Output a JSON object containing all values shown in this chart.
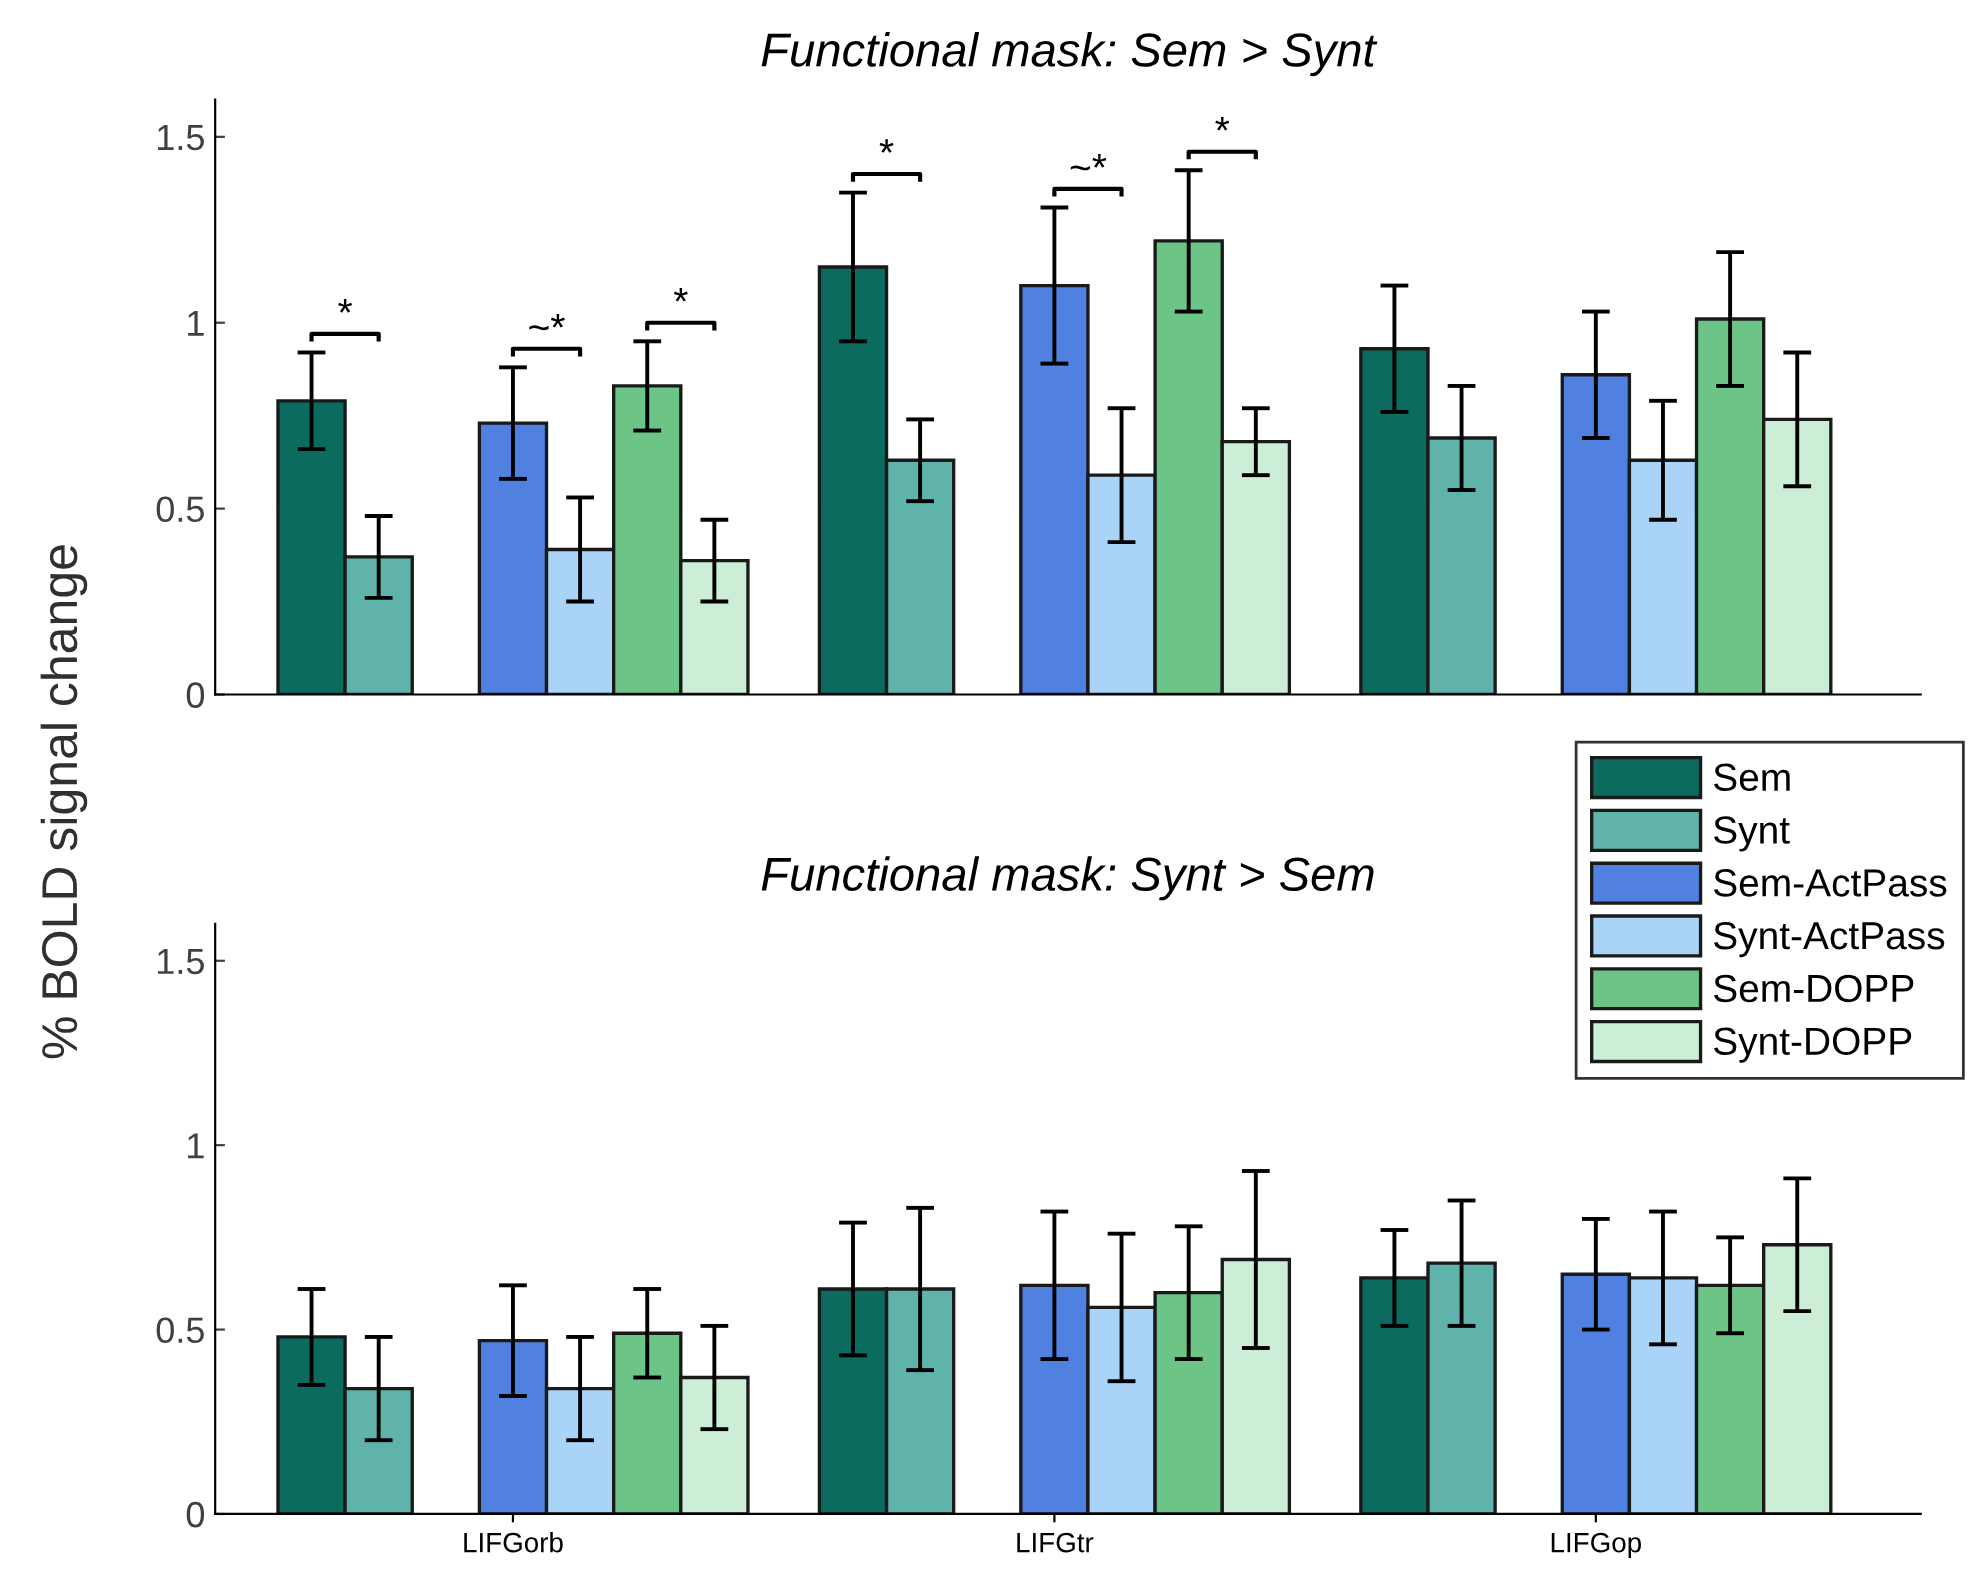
{
  "chart_data": [
    {
      "type": "bar",
      "title": "Functional mask: Sem > Synt",
      "ylabel": "% BOLD signal change",
      "categories": [
        null,
        null,
        null
      ],
      "series": [
        {
          "name": "Sem",
          "color": "#0b6b5e",
          "values": [
            0.79,
            1.15,
            0.93
          ],
          "errors": [
            0.13,
            0.2,
            0.17
          ]
        },
        {
          "name": "Synt",
          "color": "#5fb3aa",
          "values": [
            0.37,
            0.63,
            0.69
          ],
          "errors": [
            0.11,
            0.11,
            0.14
          ]
        },
        {
          "name": "Sem-ActPass",
          "color": "#5080e0",
          "values": [
            0.73,
            1.1,
            0.86
          ],
          "errors": [
            0.15,
            0.21,
            0.17
          ]
        },
        {
          "name": "Synt-ActPass",
          "color": "#a9d3f7",
          "values": [
            0.39,
            0.59,
            0.63
          ],
          "errors": [
            0.14,
            0.18,
            0.16
          ]
        },
        {
          "name": "Sem-DOPP",
          "color": "#6cc487",
          "values": [
            0.83,
            1.22,
            1.01
          ],
          "errors": [
            0.12,
            0.19,
            0.18
          ]
        },
        {
          "name": "Synt-DOPP",
          "color": "#cdeed6",
          "values": [
            0.36,
            0.68,
            0.74
          ],
          "errors": [
            0.11,
            0.09,
            0.18
          ]
        }
      ],
      "annotations": [
        "*",
        "~*",
        "*",
        "*",
        "~*",
        "*"
      ],
      "ylim": [
        0,
        1.6
      ],
      "yticks": [
        0,
        0.5,
        1,
        1.5
      ],
      "tick_labels": "y",
      "grid": false,
      "legend": "bottom right"
    },
    {
      "type": "bar",
      "title": "Functional mask: Synt > Sem",
      "categories": [
        "LIFGorb",
        "LIFGtr",
        "LIFGop"
      ],
      "series": [
        {
          "color": "#0b6b5e",
          "values": [
            0.48,
            0.61,
            0.64
          ],
          "errors": [
            0.13,
            0.18,
            0.13
          ]
        },
        {
          "color": "#5fb3aa",
          "values": [
            0.34,
            0.61,
            0.68
          ],
          "errors": [
            0.14,
            0.22,
            0.17
          ]
        },
        {
          "color": "#5080e0",
          "values": [
            0.47,
            0.62,
            0.65
          ],
          "errors": [
            0.15,
            0.2,
            0.15
          ]
        },
        {
          "color": "#a9d3f7",
          "values": [
            0.34,
            0.56,
            0.64
          ],
          "errors": [
            0.14,
            0.2,
            0.18
          ]
        },
        {
          "color": "#6cc487",
          "values": [
            0.49,
            0.6,
            0.62
          ],
          "errors": [
            0.12,
            0.18,
            0.13
          ]
        },
        {
          "color": "#cdeed6",
          "values": [
            0.37,
            0.69,
            0.73
          ],
          "errors": [
            0.14,
            0.24,
            0.18
          ]
        }
      ],
      "ylim": [
        0,
        1.6
      ],
      "yticks": [
        0,
        0.5,
        1,
        1.5
      ],
      "grid": false
    }
  ]
}
